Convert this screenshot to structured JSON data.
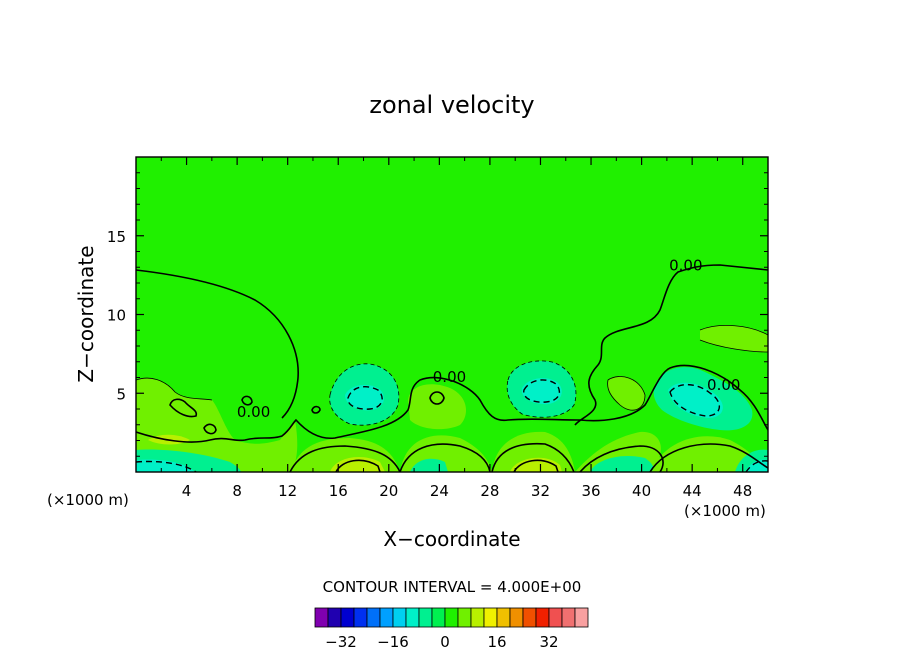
{
  "chart_data": {
    "type": "contour",
    "title": "zonal velocity",
    "xlabel": "X−coordinate",
    "ylabel": "Z−coordinate",
    "x_unit_left": "(×1000 m)",
    "x_unit_right": "(×1000 m)",
    "xlim": [
      0,
      50
    ],
    "ylim": [
      0,
      20
    ],
    "x_ticks": [
      4,
      8,
      12,
      16,
      20,
      24,
      28,
      32,
      36,
      40,
      44,
      48
    ],
    "x_tick_labels": [
      "4",
      "8",
      "12",
      "16",
      "20",
      "24",
      "28",
      "32",
      "36",
      "40",
      "44",
      "48"
    ],
    "y_ticks": [
      5,
      10,
      15
    ],
    "y_tick_labels": [
      "5",
      "10",
      "15"
    ],
    "contour_labels": [
      {
        "text": "0.00",
        "x": 43.5,
        "y": 12.8
      },
      {
        "text": "0.00",
        "x": 24.8,
        "y": 5.7
      },
      {
        "text": "0.00",
        "x": 46.5,
        "y": 5.2
      },
      {
        "text": "0.00",
        "x": 9.3,
        "y": 3.5
      }
    ],
    "contour_interval_text": "CONTOUR INTERVAL = 4.000E+00",
    "colorbar": {
      "colors": [
        "#8000b0",
        "#2000b0",
        "#0000d0",
        "#0030f0",
        "#0070f8",
        "#00a0ff",
        "#00d0f0",
        "#00f0c8",
        "#00f090",
        "#00f050",
        "#20f000",
        "#70f000",
        "#b8f000",
        "#f0f000",
        "#f0c000",
        "#f09000",
        "#f05000",
        "#f02000",
        "#f05050",
        "#f07070",
        "#f8a0a0"
      ],
      "tick_values": [
        -32,
        -16,
        0,
        16,
        32
      ],
      "tick_labels": [
        "−32",
        "−16",
        "0",
        "16",
        "32"
      ]
    },
    "colors": {
      "background_field": "#20f000",
      "weak_negative": "#00f050",
      "negative": "#00f090",
      "strong_negative": "#00f0c8",
      "weak_positive": "#70f000",
      "positive": "#b8f000"
    }
  }
}
